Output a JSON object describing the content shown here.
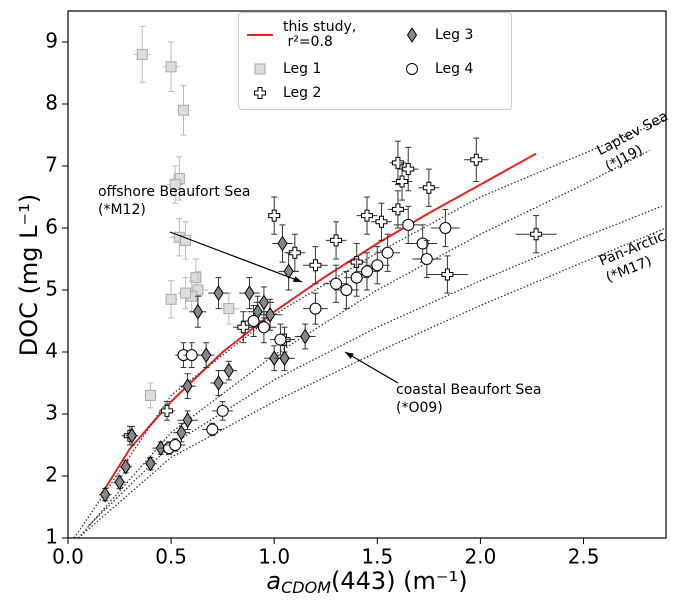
{
  "chart_data": {
    "type": "scatter",
    "ylabel": "DOC (mg L⁻¹)",
    "xlabel": {
      "symbol": "a",
      "subscript": "CDOM",
      "rest": "(443) (m⁻¹)"
    },
    "xlim": [
      0,
      2.9
    ],
    "ylim": [
      1,
      9.5
    ],
    "xticks": [
      {
        "value": 0,
        "label": "0.0"
      },
      0.5,
      {
        "value": 1,
        "label": "1.0"
      },
      1.5,
      {
        "value": 2,
        "label": "2.0"
      },
      2.5
    ],
    "yticks": [
      1,
      2,
      3,
      4,
      5,
      6,
      7,
      8,
      9
    ],
    "grid": false,
    "series": [
      {
        "kind": "line",
        "name": "this study,\n r²=0.8",
        "color": "#e8231f",
        "linestyle": "solid",
        "x": [
          0.18,
          0.3,
          0.5,
          0.75,
          1.0,
          1.25,
          1.5,
          1.75,
          2.0,
          2.27
        ],
        "values": [
          1.8,
          2.44,
          3.2,
          4.0,
          4.65,
          5.22,
          5.75,
          6.24,
          6.7,
          7.2
        ]
      },
      {
        "kind": "line",
        "color": "#333333",
        "linestyle": "dotted",
        "x": [
          0.03,
          0.5,
          1,
          1.5,
          2,
          2.5,
          2.9
        ],
        "values": [
          1.0,
          3.3,
          4.6,
          5.6,
          6.5,
          7.2,
          7.75
        ]
      },
      {
        "kind": "line",
        "color": "#333333",
        "linestyle": "dotted",
        "x": [
          0.05,
          0.5,
          1,
          1.5,
          2,
          2.5,
          2.82
        ],
        "values": [
          1.0,
          2.7,
          3.95,
          5.0,
          5.9,
          6.7,
          7.25
        ]
      },
      {
        "kind": "line",
        "color": "#333333",
        "linestyle": "dotted",
        "x": [
          0.1,
          0.5,
          1,
          1.5,
          2,
          2.5,
          2.88
        ],
        "values": [
          1.2,
          2.5,
          3.55,
          4.4,
          5.15,
          5.85,
          6.35
        ]
      },
      {
        "kind": "line",
        "color": "#333333",
        "linestyle": "dotted",
        "x": [
          0.05,
          0.5,
          1,
          1.5,
          2,
          2.5,
          2.9
        ],
        "values": [
          1.0,
          2.3,
          3.2,
          4.0,
          4.75,
          5.45,
          6.0
        ]
      },
      {
        "kind": "points",
        "name": "Leg 1",
        "marker": "square",
        "color": "#dddddd",
        "edge": "#aaaaaa",
        "errcolor": "#bbbbbb",
        "x": [
          0.36,
          0.5,
          0.56,
          0.54,
          0.52,
          0.54,
          0.57,
          0.62,
          0.63,
          0.5,
          0.6,
          0.4,
          0.78,
          0.57
        ],
        "values": [
          8.8,
          8.6,
          7.9,
          6.8,
          6.7,
          5.85,
          5.8,
          5.2,
          5.0,
          4.85,
          4.9,
          3.3,
          4.7,
          4.95
        ],
        "xerr": [
          0.04,
          0.04,
          0.03,
          0.03,
          0.04,
          0.05,
          0.04,
          0.03,
          0.05,
          0.03,
          0.05,
          0.03,
          0.05,
          0.04
        ],
        "yerr": [
          0.45,
          0.4,
          0.4,
          0.35,
          0.3,
          0.3,
          0.3,
          0.3,
          0.3,
          0.3,
          0.25,
          0.2,
          0.25,
          0.25
        ]
      },
      {
        "kind": "points",
        "name": "Leg 2",
        "marker": "plus",
        "color": "#ffffff",
        "edge": "#000000",
        "errcolor": "#333333",
        "x": [
          0.3,
          0.48,
          1.0,
          1.1,
          1.2,
          1.3,
          1.45,
          1.6,
          1.65,
          1.62,
          1.75,
          1.98,
          2.27,
          1.84,
          1.4,
          1.52,
          1.6,
          1.05,
          0.85
        ],
        "values": [
          2.65,
          3.05,
          6.2,
          5.6,
          5.4,
          5.8,
          6.2,
          7.05,
          6.95,
          6.75,
          6.65,
          7.1,
          5.9,
          5.25,
          5.45,
          6.1,
          6.3,
          4.2,
          4.4
        ],
        "xerr": [
          0.04,
          0.04,
          0.03,
          0.05,
          0.06,
          0.05,
          0.05,
          0.04,
          0.05,
          0.05,
          0.05,
          0.06,
          0.1,
          0.1,
          0.05,
          0.05,
          0.05,
          0.05,
          0.05
        ],
        "yerr": [
          0.15,
          0.15,
          0.3,
          0.3,
          0.3,
          0.3,
          0.3,
          0.35,
          0.35,
          0.3,
          0.3,
          0.35,
          0.3,
          0.3,
          0.3,
          0.3,
          0.3,
          0.2,
          0.25
        ]
      },
      {
        "kind": "points",
        "name": "Leg 3",
        "marker": "diamond",
        "color": "#888888",
        "edge": "#000000",
        "errcolor": "#333333",
        "x": [
          0.18,
          0.25,
          0.28,
          0.31,
          0.4,
          0.45,
          0.55,
          0.58,
          0.58,
          0.63,
          0.67,
          0.73,
          0.73,
          0.78,
          0.88,
          0.92,
          0.95,
          1.0,
          1.05,
          1.04,
          1.07,
          1.15,
          0.98
        ],
        "values": [
          1.7,
          1.9,
          2.15,
          2.65,
          2.2,
          2.45,
          2.7,
          3.45,
          2.9,
          4.65,
          3.95,
          4.95,
          3.5,
          3.7,
          4.95,
          4.65,
          4.8,
          3.9,
          3.9,
          5.75,
          5.3,
          4.25,
          4.6
        ],
        "xerr": [
          0.03,
          0.03,
          0.03,
          0.03,
          0.03,
          0.04,
          0.04,
          0.04,
          0.05,
          0.04,
          0.04,
          0.05,
          0.04,
          0.04,
          0.05,
          0.05,
          0.05,
          0.05,
          0.05,
          0.05,
          0.05,
          0.05,
          0.06
        ],
        "yerr": [
          0.1,
          0.1,
          0.1,
          0.15,
          0.1,
          0.1,
          0.15,
          0.2,
          0.15,
          0.25,
          0.2,
          0.25,
          0.2,
          0.15,
          0.25,
          0.25,
          0.25,
          0.2,
          0.2,
          0.3,
          0.3,
          0.2,
          0.25
        ]
      },
      {
        "kind": "points",
        "name": "Leg 4",
        "marker": "circle",
        "color": "#ffffff",
        "edge": "#000000",
        "errcolor": "#333333",
        "x": [
          0.49,
          0.52,
          0.56,
          0.6,
          0.7,
          0.75,
          0.9,
          0.95,
          1.03,
          1.2,
          1.3,
          1.35,
          1.4,
          1.45,
          1.55,
          1.65,
          1.72,
          1.74,
          1.83,
          1.5
        ],
        "values": [
          2.45,
          2.5,
          3.95,
          3.95,
          2.75,
          3.05,
          4.5,
          4.4,
          4.2,
          4.7,
          5.1,
          5.0,
          5.2,
          5.3,
          5.6,
          6.05,
          5.75,
          5.5,
          6.0,
          5.4
        ],
        "xerr": [
          0.05,
          0.05,
          0.04,
          0.04,
          0.05,
          0.05,
          0.06,
          0.06,
          0.05,
          0.06,
          0.06,
          0.06,
          0.06,
          0.06,
          0.06,
          0.07,
          0.07,
          0.07,
          0.07,
          0.06
        ],
        "yerr": [
          0.1,
          0.1,
          0.2,
          0.2,
          0.1,
          0.15,
          0.25,
          0.25,
          0.25,
          0.25,
          0.3,
          0.3,
          0.3,
          0.3,
          0.3,
          0.3,
          0.3,
          0.3,
          0.3,
          0.3
        ]
      }
    ],
    "annotations": [
      {
        "text": [
          "offshore Beaufort Sea",
          "(*M12)"
        ]
      },
      {
        "text": [
          "coastal Beaufort Sea",
          "(*O09)"
        ]
      },
      {
        "text": [
          "Laptev Sea",
          "(*J19)"
        ]
      },
      {
        "text": [
          "Pan-Arctic",
          "(*M17)"
        ]
      }
    ],
    "legend": "upper center"
  }
}
